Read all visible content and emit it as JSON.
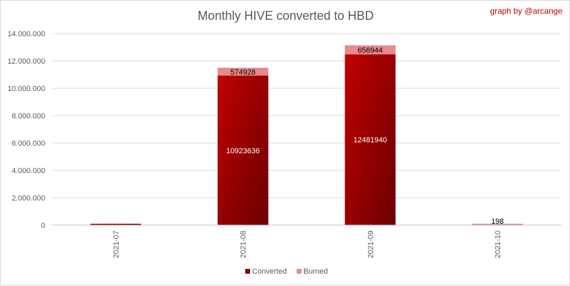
{
  "chart_data": {
    "type": "bar",
    "stacked": true,
    "title": "Monthly HIVE converted to HBD",
    "credit": "graph by @arcange",
    "categories": [
      "2021-07",
      "2021-08",
      "2021-09",
      "2021-10"
    ],
    "series": [
      {
        "name": "Converted",
        "values": [
          75000,
          10923636,
          12481940,
          0
        ],
        "color": "#c00000"
      },
      {
        "name": "Burned",
        "values": [
          0,
          574928,
          656944,
          198
        ],
        "color": "#e8898b"
      }
    ],
    "data_labels": {
      "Converted": [
        "",
        "10923636",
        "12481940",
        ""
      ],
      "Burned": [
        "",
        "574928",
        "656944",
        "198"
      ]
    },
    "yticks": [
      "0",
      "2.000.000",
      "4.000.000",
      "6.000.000",
      "8.000.000",
      "10.000.000",
      "12.000.000",
      "14.000.000"
    ],
    "ylim": [
      0,
      14000000
    ],
    "grid": true,
    "legend": "bottom"
  }
}
